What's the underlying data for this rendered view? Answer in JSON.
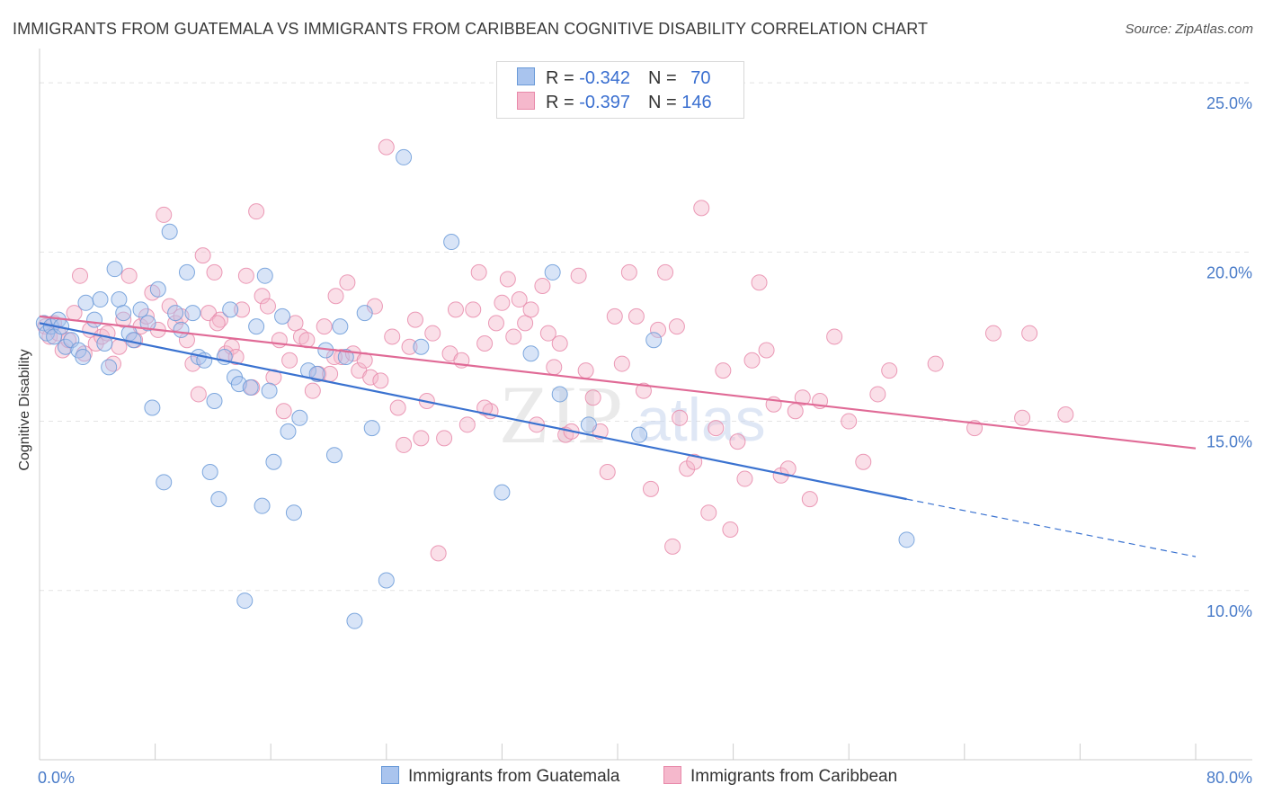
{
  "title": "IMMIGRANTS FROM GUATEMALA VS IMMIGRANTS FROM CARIBBEAN COGNITIVE DISABILITY CORRELATION CHART",
  "source": "Source: ZipAtlas.com",
  "watermark": {
    "zip": "ZIP",
    "atlas": "atlas"
  },
  "legend_top": {
    "rows": [
      {
        "r_label": "R = ",
        "r_value": "-0.342",
        "n_label": "N = ",
        "n_value": "70"
      },
      {
        "r_label": "R = ",
        "r_value": "-0.397",
        "n_label": "N = ",
        "n_value": "146"
      }
    ]
  },
  "colors": {
    "guatemala_fill": "#a9c4ee",
    "guatemala_stroke": "#6a9ad8",
    "guatemala_line": "#3a72d0",
    "caribbean_fill": "#f5b8cc",
    "caribbean_stroke": "#e88aaa",
    "caribbean_line": "#e06a96",
    "tick_text": "#4a7cc9",
    "grid": "#e4e4e4"
  },
  "chart_data": {
    "type": "scatter",
    "title": "IMMIGRANTS FROM GUATEMALA VS IMMIGRANTS FROM CARIBBEAN COGNITIVE DISABILITY CORRELATION CHART",
    "xlabel": "",
    "ylabel": "Cognitive Disability",
    "xlim": [
      0,
      80
    ],
    "ylim": [
      5,
      25.8
    ],
    "x_tick_labels": [
      "0.0%",
      "80.0%"
    ],
    "y_ticks": [
      10,
      15,
      20,
      25
    ],
    "y_tick_labels": [
      "10.0%",
      "15.0%",
      "20.0%",
      "25.0%"
    ],
    "grid": "horizontal dashed",
    "legend_placement": "bottom-center",
    "series": [
      {
        "name": "Immigrants from Guatemala",
        "r": -0.342,
        "n": 70,
        "trend": {
          "x": [
            0,
            60
          ],
          "y": [
            17.9,
            12.7
          ]
        },
        "trend_extension": {
          "x": [
            60,
            80
          ],
          "y": [
            12.7,
            11.0
          ]
        },
        "points": [
          [
            0.3,
            17.9
          ],
          [
            0.5,
            17.6
          ],
          [
            0.8,
            17.8
          ],
          [
            1.0,
            17.5
          ],
          [
            1.3,
            18.0
          ],
          [
            1.5,
            17.8
          ],
          [
            1.8,
            17.2
          ],
          [
            2.2,
            17.4
          ],
          [
            2.7,
            17.1
          ],
          [
            3.0,
            16.9
          ],
          [
            3.2,
            18.5
          ],
          [
            3.8,
            18.0
          ],
          [
            4.2,
            18.6
          ],
          [
            4.5,
            17.3
          ],
          [
            4.8,
            16.6
          ],
          [
            5.2,
            19.5
          ],
          [
            5.5,
            18.6
          ],
          [
            5.8,
            18.2
          ],
          [
            6.2,
            17.6
          ],
          [
            6.5,
            17.4
          ],
          [
            7.0,
            18.3
          ],
          [
            7.5,
            17.9
          ],
          [
            7.8,
            15.4
          ],
          [
            8.2,
            18.9
          ],
          [
            8.6,
            13.2
          ],
          [
            9.0,
            20.6
          ],
          [
            9.4,
            18.2
          ],
          [
            9.8,
            17.7
          ],
          [
            10.2,
            19.4
          ],
          [
            10.6,
            18.2
          ],
          [
            11.0,
            16.9
          ],
          [
            11.4,
            16.8
          ],
          [
            11.8,
            13.5
          ],
          [
            12.1,
            15.6
          ],
          [
            12.4,
            12.7
          ],
          [
            12.8,
            16.9
          ],
          [
            13.2,
            18.3
          ],
          [
            13.5,
            16.3
          ],
          [
            13.8,
            16.1
          ],
          [
            14.2,
            9.7
          ],
          [
            14.6,
            16.0
          ],
          [
            15.0,
            17.8
          ],
          [
            15.4,
            12.5
          ],
          [
            15.6,
            19.3
          ],
          [
            15.9,
            15.9
          ],
          [
            16.2,
            13.8
          ],
          [
            16.8,
            18.1
          ],
          [
            17.2,
            14.7
          ],
          [
            17.6,
            12.3
          ],
          [
            18.0,
            15.1
          ],
          [
            18.6,
            16.5
          ],
          [
            19.2,
            16.4
          ],
          [
            19.8,
            17.1
          ],
          [
            20.4,
            14.0
          ],
          [
            20.8,
            17.8
          ],
          [
            21.2,
            16.9
          ],
          [
            21.8,
            9.1
          ],
          [
            22.5,
            18.2
          ],
          [
            23.0,
            14.8
          ],
          [
            24.0,
            10.3
          ],
          [
            25.2,
            22.8
          ],
          [
            26.4,
            17.2
          ],
          [
            28.5,
            20.3
          ],
          [
            32.0,
            12.9
          ],
          [
            34.0,
            17.0
          ],
          [
            35.5,
            19.4
          ],
          [
            36.0,
            15.8
          ],
          [
            38.0,
            14.9
          ],
          [
            41.5,
            14.6
          ],
          [
            42.5,
            17.4
          ],
          [
            60.0,
            11.5
          ]
        ]
      },
      {
        "name": "Immigrants from Caribbean",
        "r": -0.397,
        "n": 146,
        "trend": {
          "x": [
            0,
            80
          ],
          "y": [
            18.1,
            14.2
          ]
        },
        "points": [
          [
            0.4,
            17.8
          ],
          [
            0.7,
            17.5
          ],
          [
            1.0,
            17.9
          ],
          [
            1.3,
            17.6
          ],
          [
            1.6,
            17.1
          ],
          [
            2.0,
            17.4
          ],
          [
            2.4,
            18.2
          ],
          [
            2.8,
            19.3
          ],
          [
            3.1,
            17.0
          ],
          [
            3.5,
            17.7
          ],
          [
            3.9,
            17.3
          ],
          [
            4.3,
            17.5
          ],
          [
            4.7,
            17.6
          ],
          [
            5.1,
            16.7
          ],
          [
            5.5,
            17.2
          ],
          [
            5.8,
            18.0
          ],
          [
            6.2,
            19.3
          ],
          [
            6.6,
            17.4
          ],
          [
            7.0,
            17.8
          ],
          [
            7.4,
            18.1
          ],
          [
            7.8,
            18.8
          ],
          [
            8.2,
            17.7
          ],
          [
            8.6,
            21.1
          ],
          [
            9.0,
            18.4
          ],
          [
            9.4,
            17.9
          ],
          [
            9.8,
            18.1
          ],
          [
            10.2,
            17.4
          ],
          [
            10.6,
            16.7
          ],
          [
            11.0,
            15.8
          ],
          [
            11.3,
            19.9
          ],
          [
            11.7,
            18.2
          ],
          [
            12.1,
            19.4
          ],
          [
            12.5,
            18.0
          ],
          [
            12.9,
            17.0
          ],
          [
            13.3,
            17.2
          ],
          [
            13.6,
            16.9
          ],
          [
            14.0,
            18.3
          ],
          [
            14.3,
            19.3
          ],
          [
            14.7,
            16.0
          ],
          [
            15.0,
            21.2
          ],
          [
            15.4,
            18.7
          ],
          [
            15.8,
            18.4
          ],
          [
            16.2,
            16.3
          ],
          [
            16.6,
            17.4
          ],
          [
            16.9,
            15.3
          ],
          [
            17.3,
            16.8
          ],
          [
            17.7,
            17.9
          ],
          [
            18.1,
            17.5
          ],
          [
            18.5,
            17.4
          ],
          [
            18.9,
            15.9
          ],
          [
            19.3,
            16.4
          ],
          [
            19.7,
            17.8
          ],
          [
            20.1,
            16.4
          ],
          [
            20.5,
            18.7
          ],
          [
            20.9,
            16.9
          ],
          [
            21.3,
            19.1
          ],
          [
            21.7,
            17.0
          ],
          [
            22.1,
            16.5
          ],
          [
            22.5,
            16.8
          ],
          [
            22.9,
            16.3
          ],
          [
            23.2,
            18.4
          ],
          [
            23.6,
            16.2
          ],
          [
            24.0,
            23.1
          ],
          [
            24.4,
            17.5
          ],
          [
            24.8,
            15.4
          ],
          [
            25.2,
            14.3
          ],
          [
            25.6,
            17.2
          ],
          [
            26.0,
            18.0
          ],
          [
            26.4,
            14.5
          ],
          [
            26.8,
            15.6
          ],
          [
            27.2,
            17.6
          ],
          [
            27.6,
            11.1
          ],
          [
            28.0,
            14.5
          ],
          [
            28.4,
            17.0
          ],
          [
            28.8,
            18.3
          ],
          [
            29.2,
            16.8
          ],
          [
            29.6,
            14.9
          ],
          [
            30.0,
            18.3
          ],
          [
            30.4,
            19.4
          ],
          [
            30.8,
            17.3
          ],
          [
            31.2,
            15.3
          ],
          [
            31.6,
            17.9
          ],
          [
            32.0,
            18.5
          ],
          [
            32.4,
            19.2
          ],
          [
            32.8,
            17.5
          ],
          [
            33.2,
            18.6
          ],
          [
            33.6,
            17.9
          ],
          [
            34.0,
            18.3
          ],
          [
            34.4,
            14.9
          ],
          [
            34.8,
            19.0
          ],
          [
            35.2,
            17.6
          ],
          [
            35.6,
            16.6
          ],
          [
            36.0,
            17.3
          ],
          [
            36.4,
            14.6
          ],
          [
            36.8,
            14.7
          ],
          [
            37.3,
            19.3
          ],
          [
            37.8,
            16.5
          ],
          [
            38.3,
            15.7
          ],
          [
            38.8,
            14.7
          ],
          [
            39.3,
            13.5
          ],
          [
            39.8,
            18.1
          ],
          [
            40.3,
            16.7
          ],
          [
            40.8,
            19.4
          ],
          [
            41.3,
            18.1
          ],
          [
            41.8,
            15.9
          ],
          [
            42.3,
            13.0
          ],
          [
            42.8,
            17.7
          ],
          [
            43.3,
            19.4
          ],
          [
            43.8,
            11.3
          ],
          [
            44.3,
            15.1
          ],
          [
            44.8,
            13.6
          ],
          [
            45.3,
            13.8
          ],
          [
            45.8,
            21.3
          ],
          [
            46.3,
            12.3
          ],
          [
            46.8,
            14.8
          ],
          [
            47.3,
            16.5
          ],
          [
            47.8,
            11.8
          ],
          [
            48.3,
            14.4
          ],
          [
            48.8,
            13.3
          ],
          [
            49.3,
            16.8
          ],
          [
            49.8,
            19.1
          ],
          [
            50.3,
            17.1
          ],
          [
            50.8,
            15.5
          ],
          [
            51.3,
            13.4
          ],
          [
            51.8,
            13.6
          ],
          [
            52.3,
            15.3
          ],
          [
            52.8,
            15.7
          ],
          [
            53.3,
            12.7
          ],
          [
            54.0,
            15.6
          ],
          [
            55.0,
            17.5
          ],
          [
            56.0,
            15.0
          ],
          [
            57.0,
            13.8
          ],
          [
            58.0,
            15.8
          ],
          [
            62.0,
            16.7
          ],
          [
            66.0,
            17.6
          ],
          [
            68.0,
            15.1
          ],
          [
            68.5,
            17.6
          ],
          [
            71.0,
            15.2
          ],
          [
            12.3,
            17.9
          ],
          [
            20.4,
            16.9
          ],
          [
            30.8,
            15.4
          ],
          [
            44.1,
            17.8
          ],
          [
            58.8,
            16.5
          ],
          [
            64.7,
            14.8
          ]
        ]
      }
    ]
  }
}
